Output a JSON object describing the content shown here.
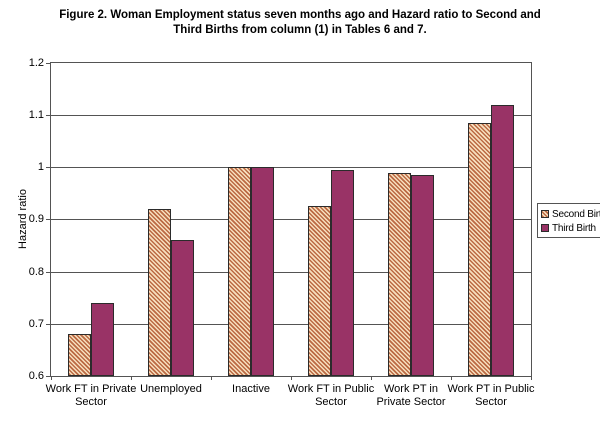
{
  "chart_data": {
    "type": "bar",
    "title": "Figure 2. Woman Employment status seven months ago and Hazard ratio to Second and\nThird Births from column (1) in Tables 6 and 7.",
    "xlabel": "",
    "ylabel": "Hazard ratio",
    "ylim": [
      0.6,
      1.2
    ],
    "yticks": [
      "0.6",
      "0.7",
      "0.8",
      "0.9",
      "1",
      "1.1",
      "1.2"
    ],
    "grid": "horizontal",
    "legend_position": "right",
    "categories": [
      "Work FT in Private Sector",
      "Unemployed",
      "Inactive",
      "Work FT in Public Sector",
      "Work PT in Private Sector",
      "Work PT in Public Sector"
    ],
    "categories_display": [
      "Work FT in Private\nSector",
      "Unemployed",
      "Inactive",
      "Work FT in Public\nSector",
      "Work PT in\nPrivate Sector",
      "Work PT in Public\nSector"
    ],
    "series": [
      {
        "name": "Second Birth",
        "pattern": "diagonal-hatch",
        "values": [
          0.68,
          0.92,
          1.0,
          0.925,
          0.99,
          1.085
        ]
      },
      {
        "name": "Third Birth",
        "pattern": "solid",
        "values": [
          0.74,
          0.86,
          1.0,
          0.995,
          0.985,
          1.12
        ]
      }
    ],
    "colors": {
      "solid": "#993366",
      "hatch_stripe": "#bb6a44",
      "hatch_bg": "#f7dfbe",
      "bar_border": "#2b2b2b",
      "axis": "#545454"
    }
  }
}
